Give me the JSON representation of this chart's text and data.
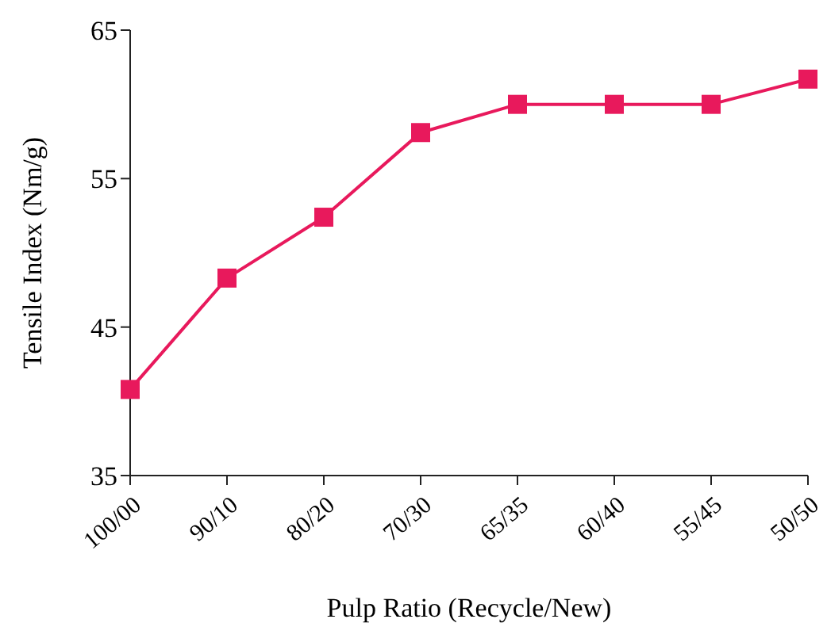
{
  "chart_data": {
    "type": "line",
    "xlabel": "Pulp Ratio (Recycle/New)",
    "ylabel": "Tensile Index (Nm/g)",
    "categories": [
      "100/00",
      "90/10",
      "80/20",
      "70/30",
      "65/35",
      "60/40",
      "55/45",
      "50/50"
    ],
    "series": [
      {
        "color": "#e8195c",
        "values": [
          40.8,
          48.3,
          52.4,
          58.1,
          60.0,
          60.0,
          60.0,
          61.7
        ]
      }
    ],
    "ylim": [
      35,
      65
    ],
    "yticks": [
      35,
      45,
      55,
      65
    ],
    "grid": false,
    "marker": "square",
    "line_style": "solid"
  }
}
